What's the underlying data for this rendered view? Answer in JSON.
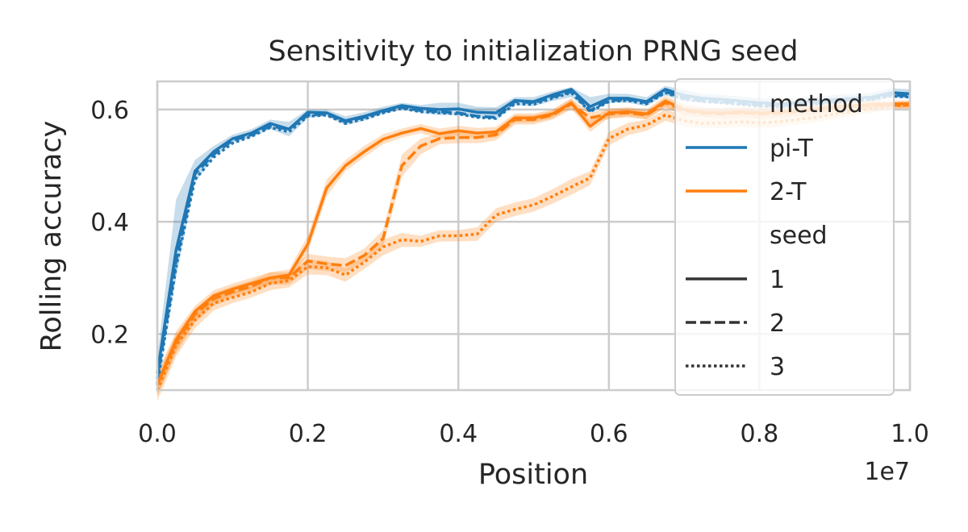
{
  "chart_data": {
    "type": "line",
    "title": "Sensitivity to initialization PRNG seed",
    "xlabel": "Position",
    "ylabel": "Rolling accuracy",
    "x_offset_label": "1e7",
    "xlim": [
      0,
      1.0
    ],
    "ylim": [
      0.1,
      0.65
    ],
    "x_ticks": [
      0.0,
      0.2,
      0.4,
      0.6,
      0.8,
      1.0
    ],
    "x_tick_labels": [
      "0.0",
      "0.2",
      "0.4",
      "0.6",
      "0.8",
      "1.0"
    ],
    "y_ticks": [
      0.2,
      0.4,
      0.6
    ],
    "y_tick_labels": [
      "0.2",
      "0.4",
      "0.6"
    ],
    "grid": true,
    "legend_location": "right",
    "legend": {
      "method_title": "method",
      "seed_title": "seed",
      "methods": [
        {
          "label": "pi-T",
          "color": "#1f77b4"
        },
        {
          "label": "2-T",
          "color": "#ff7f0e"
        }
      ],
      "seeds": [
        {
          "label": "1",
          "style": "solid"
        },
        {
          "label": "2",
          "style": "dashed"
        },
        {
          "label": "3",
          "style": "dotted"
        }
      ],
      "legend_line_color": "#333333"
    },
    "x": [
      0.0,
      0.025,
      0.05,
      0.075,
      0.1,
      0.125,
      0.15,
      0.175,
      0.2,
      0.225,
      0.25,
      0.275,
      0.3,
      0.325,
      0.35,
      0.375,
      0.4,
      0.425,
      0.45,
      0.475,
      0.5,
      0.525,
      0.55,
      0.575,
      0.6,
      0.625,
      0.65,
      0.675,
      0.7,
      0.725,
      0.75,
      0.775,
      0.8,
      0.825,
      0.85,
      0.875,
      0.9,
      0.925,
      0.95,
      0.975,
      1.0
    ],
    "series": [
      {
        "name": "pi-T seed 1",
        "method": "pi-T",
        "seed": "1",
        "color": "#1f77b4",
        "style": "solid",
        "values": [
          0.13,
          0.35,
          0.49,
          0.525,
          0.548,
          0.558,
          0.575,
          0.565,
          0.595,
          0.594,
          0.58,
          0.588,
          0.598,
          0.607,
          0.602,
          0.6,
          0.601,
          0.595,
          0.594,
          0.616,
          0.614,
          0.626,
          0.636,
          0.605,
          0.62,
          0.62,
          0.614,
          0.636,
          0.625,
          0.62,
          0.618,
          0.615,
          0.612,
          0.61,
          0.612,
          0.615,
          0.618,
          0.62,
          0.622,
          0.63,
          0.628
        ],
        "lower": [
          0.1,
          0.3,
          0.47,
          0.515,
          0.54,
          0.55,
          0.565,
          0.552,
          0.585,
          0.588,
          0.572,
          0.58,
          0.592,
          0.6,
          0.594,
          0.59,
          0.59,
          0.585,
          0.582,
          0.608,
          0.606,
          0.615,
          0.622,
          0.595,
          0.612,
          0.612,
          0.606,
          0.625,
          0.615,
          0.612,
          0.61,
          0.607,
          0.604,
          0.602,
          0.604,
          0.607,
          0.61,
          0.612,
          0.614,
          0.62,
          0.62
        ],
        "upper": [
          0.16,
          0.44,
          0.51,
          0.535,
          0.555,
          0.565,
          0.582,
          0.578,
          0.6,
          0.6,
          0.588,
          0.595,
          0.605,
          0.612,
          0.608,
          0.612,
          0.612,
          0.605,
          0.604,
          0.622,
          0.622,
          0.632,
          0.64,
          0.622,
          0.628,
          0.628,
          0.622,
          0.642,
          0.635,
          0.628,
          0.626,
          0.623,
          0.62,
          0.618,
          0.62,
          0.623,
          0.626,
          0.628,
          0.63,
          0.638,
          0.636
        ]
      },
      {
        "name": "pi-T seed 2",
        "method": "pi-T",
        "seed": "2",
        "color": "#1f77b4",
        "style": "dashed",
        "values": [
          0.12,
          0.33,
          0.485,
          0.52,
          0.545,
          0.555,
          0.57,
          0.565,
          0.59,
          0.592,
          0.578,
          0.586,
          0.596,
          0.604,
          0.598,
          0.596,
          0.594,
          0.588,
          0.586,
          0.614,
          0.612,
          0.622,
          0.632,
          0.598,
          0.616,
          0.618,
          0.612,
          0.632,
          0.62,
          0.616,
          0.614,
          0.611,
          0.608,
          0.607,
          0.609,
          0.612,
          0.615,
          0.617,
          0.62,
          0.626,
          0.624
        ]
      },
      {
        "name": "pi-T seed 3",
        "method": "pi-T",
        "seed": "3",
        "color": "#1f77b4",
        "style": "dotted",
        "values": [
          0.11,
          0.32,
          0.475,
          0.515,
          0.54,
          0.552,
          0.568,
          0.56,
          0.588,
          0.59,
          0.575,
          0.583,
          0.594,
          0.602,
          0.596,
          0.594,
          0.592,
          0.586,
          0.584,
          0.61,
          0.609,
          0.62,
          0.63,
          0.596,
          0.614,
          0.616,
          0.61,
          0.63,
          0.618,
          0.614,
          0.612,
          0.609,
          0.606,
          0.605,
          0.607,
          0.61,
          0.613,
          0.615,
          0.618,
          0.624,
          0.622
        ]
      },
      {
        "name": "2-T seed 1",
        "method": "2-T",
        "seed": "1",
        "color": "#ff7f0e",
        "style": "solid",
        "values": [
          0.11,
          0.19,
          0.24,
          0.268,
          0.28,
          0.29,
          0.3,
          0.305,
          0.36,
          0.46,
          0.5,
          0.525,
          0.547,
          0.558,
          0.566,
          0.557,
          0.562,
          0.558,
          0.56,
          0.585,
          0.585,
          0.592,
          0.612,
          0.57,
          0.594,
          0.596,
          0.592,
          0.615,
          0.6,
          0.595,
          0.594,
          0.596,
          0.594,
          0.595,
          0.598,
          0.601,
          0.605,
          0.607,
          0.609,
          0.61,
          0.61
        ],
        "lower": [
          0.09,
          0.17,
          0.225,
          0.255,
          0.27,
          0.28,
          0.29,
          0.293,
          0.345,
          0.445,
          0.49,
          0.515,
          0.538,
          0.55,
          0.558,
          0.548,
          0.553,
          0.548,
          0.55,
          0.576,
          0.577,
          0.584,
          0.603,
          0.56,
          0.585,
          0.588,
          0.583,
          0.604,
          0.59,
          0.586,
          0.585,
          0.587,
          0.585,
          0.587,
          0.59,
          0.593,
          0.597,
          0.6,
          0.602,
          0.604,
          0.604
        ],
        "upper": [
          0.13,
          0.205,
          0.25,
          0.278,
          0.29,
          0.3,
          0.31,
          0.315,
          0.375,
          0.475,
          0.51,
          0.535,
          0.556,
          0.566,
          0.574,
          0.566,
          0.571,
          0.567,
          0.569,
          0.593,
          0.593,
          0.6,
          0.62,
          0.58,
          0.602,
          0.604,
          0.6,
          0.624,
          0.61,
          0.604,
          0.603,
          0.605,
          0.603,
          0.603,
          0.606,
          0.609,
          0.613,
          0.614,
          0.616,
          0.616,
          0.616
        ]
      },
      {
        "name": "2-T seed 2",
        "method": "2-T",
        "seed": "2",
        "color": "#ff7f0e",
        "style": "dashed",
        "values": [
          0.11,
          0.185,
          0.235,
          0.263,
          0.275,
          0.285,
          0.3,
          0.3,
          0.33,
          0.325,
          0.322,
          0.34,
          0.37,
          0.5,
          0.535,
          0.548,
          0.55,
          0.55,
          0.555,
          0.582,
          0.582,
          0.59,
          0.61,
          0.585,
          0.592,
          0.594,
          0.59,
          0.612,
          0.598,
          0.593,
          0.592,
          0.594,
          0.592,
          0.593,
          0.596,
          0.599,
          0.603,
          0.605,
          0.607,
          0.608,
          0.608
        ],
        "lower": [
          0.09,
          0.165,
          0.22,
          0.25,
          0.265,
          0.275,
          0.288,
          0.288,
          0.316,
          0.312,
          0.31,
          0.328,
          0.355,
          0.48,
          0.52,
          0.538,
          0.54,
          0.54,
          0.545,
          0.573,
          0.573,
          0.582,
          0.6,
          0.575,
          0.583,
          0.586,
          0.582,
          0.603,
          0.589,
          0.585,
          0.584,
          0.586,
          0.584,
          0.585,
          0.588,
          0.591,
          0.595,
          0.598,
          0.6,
          0.602,
          0.602
        ],
        "upper": [
          0.13,
          0.2,
          0.245,
          0.273,
          0.285,
          0.295,
          0.31,
          0.31,
          0.343,
          0.338,
          0.335,
          0.352,
          0.385,
          0.52,
          0.548,
          0.557,
          0.559,
          0.559,
          0.564,
          0.59,
          0.59,
          0.598,
          0.619,
          0.595,
          0.6,
          0.602,
          0.598,
          0.62,
          0.606,
          0.601,
          0.6,
          0.602,
          0.6,
          0.601,
          0.604,
          0.607,
          0.611,
          0.612,
          0.614,
          0.614,
          0.614
        ]
      },
      {
        "name": "2-T seed 3",
        "method": "2-T",
        "seed": "3",
        "color": "#ff7f0e",
        "style": "dotted",
        "values": [
          0.1,
          0.18,
          0.225,
          0.255,
          0.265,
          0.275,
          0.29,
          0.295,
          0.32,
          0.318,
          0.305,
          0.328,
          0.355,
          0.368,
          0.365,
          0.375,
          0.375,
          0.378,
          0.412,
          0.422,
          0.43,
          0.445,
          0.462,
          0.478,
          0.548,
          0.565,
          0.572,
          0.59,
          0.58,
          0.575,
          0.576,
          0.578,
          0.576,
          0.578,
          0.582,
          0.586,
          0.592,
          0.597,
          0.602,
          0.606,
          0.608
        ],
        "lower": [
          0.08,
          0.16,
          0.21,
          0.242,
          0.255,
          0.265,
          0.278,
          0.283,
          0.306,
          0.305,
          0.293,
          0.316,
          0.34,
          0.355,
          0.355,
          0.365,
          0.365,
          0.366,
          0.4,
          0.41,
          0.418,
          0.432,
          0.448,
          0.465,
          0.536,
          0.554,
          0.562,
          0.58,
          0.57,
          0.566,
          0.567,
          0.569,
          0.567,
          0.569,
          0.573,
          0.577,
          0.583,
          0.589,
          0.594,
          0.6,
          0.602
        ],
        "upper": [
          0.12,
          0.195,
          0.238,
          0.268,
          0.275,
          0.285,
          0.302,
          0.307,
          0.333,
          0.33,
          0.317,
          0.34,
          0.368,
          0.38,
          0.375,
          0.385,
          0.385,
          0.39,
          0.424,
          0.434,
          0.442,
          0.458,
          0.476,
          0.49,
          0.56,
          0.576,
          0.582,
          0.6,
          0.59,
          0.584,
          0.585,
          0.587,
          0.585,
          0.587,
          0.591,
          0.595,
          0.601,
          0.605,
          0.61,
          0.612,
          0.614
        ]
      }
    ]
  }
}
